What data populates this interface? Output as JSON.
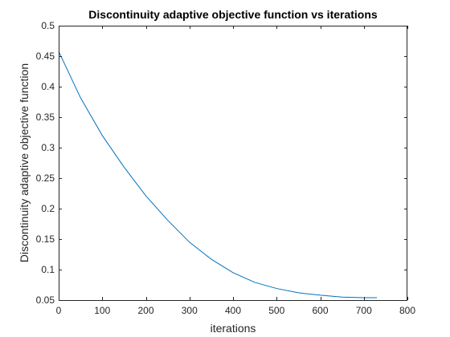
{
  "chart_data": {
    "type": "line",
    "title": "Discontinuity adaptive objective function vs iterations",
    "xlabel": "iterations",
    "ylabel": "Discontinuity adaptive objective function",
    "xlim": [
      0,
      800
    ],
    "ylim": [
      0.05,
      0.5
    ],
    "xticks": [
      0,
      100,
      200,
      300,
      400,
      500,
      600,
      700,
      800
    ],
    "yticks": [
      0.05,
      0.1,
      0.15,
      0.2,
      0.25,
      0.3,
      0.35,
      0.4,
      0.45,
      0.5
    ],
    "xtick_labels": [
      "0",
      "100",
      "200",
      "300",
      "400",
      "500",
      "600",
      "700",
      "800"
    ],
    "ytick_labels": [
      "0.05",
      "0.1",
      "0.15",
      "0.2",
      "0.25",
      "0.3",
      "0.35",
      "0.4",
      "0.45",
      "0.5"
    ],
    "grid": false,
    "box": true,
    "series": [
      {
        "color": "#0072BD",
        "x": [
          0,
          50,
          100,
          150,
          200,
          250,
          300,
          350,
          400,
          450,
          500,
          550,
          600,
          650,
          700,
          730
        ],
        "y": [
          0.458,
          0.382,
          0.32,
          0.268,
          0.221,
          0.181,
          0.145,
          0.117,
          0.095,
          0.079,
          0.069,
          0.062,
          0.058,
          0.055,
          0.054,
          0.054
        ]
      }
    ]
  }
}
